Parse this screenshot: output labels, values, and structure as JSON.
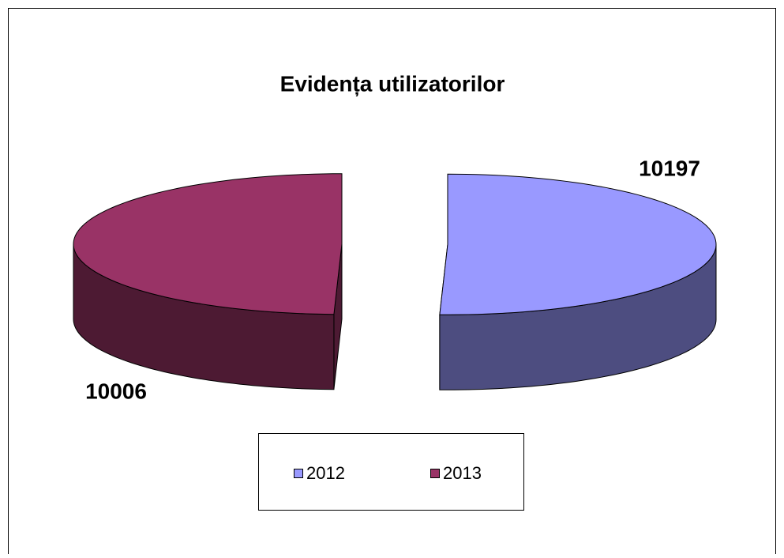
{
  "chart_data": {
    "type": "pie3d",
    "title": "Evidența utilizatorilor",
    "categories": [
      "2012",
      "2013"
    ],
    "values": [
      10197,
      10006
    ],
    "colors": [
      "#9999ff",
      "#993366"
    ],
    "legend": "bottom"
  }
}
